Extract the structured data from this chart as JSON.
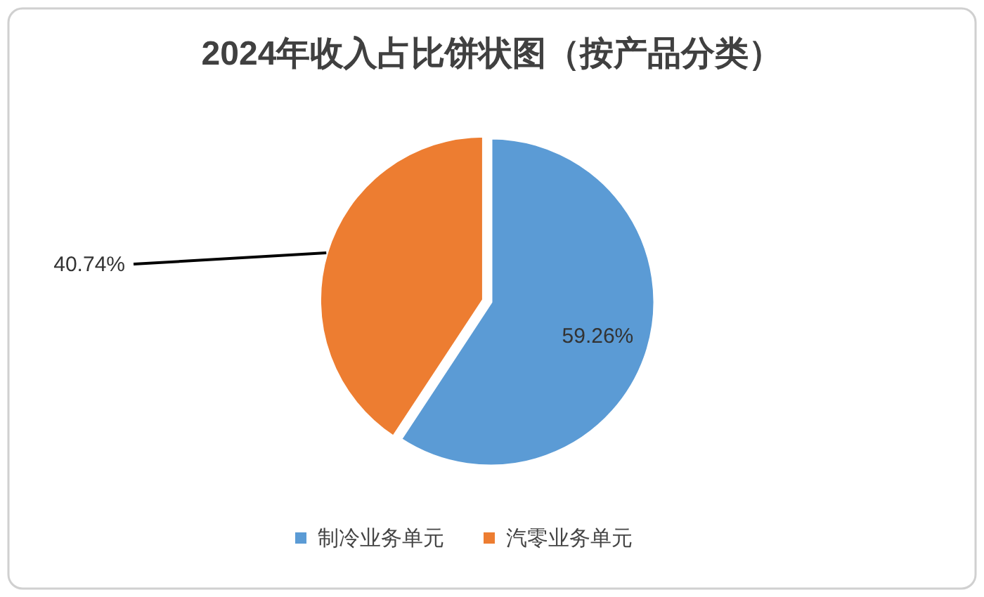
{
  "chart_data": {
    "type": "pie",
    "title": "2024年收入占比饼状图（按产品分类）",
    "categories": [
      "制冷业务单元",
      "汽零业务单元"
    ],
    "values": [
      59.26,
      40.74
    ],
    "colors": [
      "#5b9bd5",
      "#ed7d31"
    ],
    "value_labels": [
      "59.26%",
      "40.74%"
    ],
    "legend": "bottom"
  }
}
